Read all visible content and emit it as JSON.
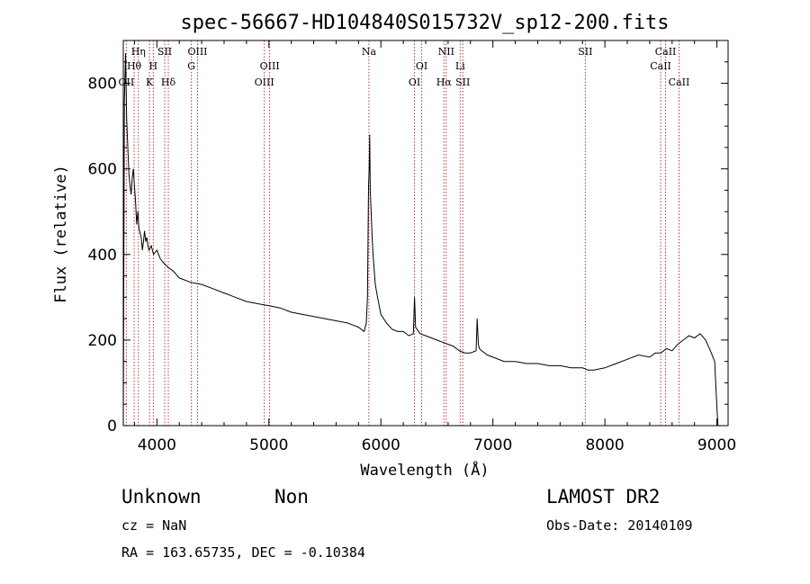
{
  "chart_data": {
    "type": "line",
    "title": "spec-56667-HD104840S015732V_sp12-200.fits",
    "xlabel": "Wavelength (Å)",
    "ylabel": "Flux (relative)",
    "xlim": [
      3700,
      9100
    ],
    "ylim": [
      0,
      900
    ],
    "xticks": [
      4000,
      5000,
      6000,
      7000,
      8000,
      9000
    ],
    "yticks": [
      0,
      200,
      400,
      600,
      800
    ],
    "grid": false,
    "series": [
      {
        "x": [
          3700,
          3710,
          3720,
          3730,
          3740,
          3750,
          3760,
          3770,
          3780,
          3790,
          3800,
          3810,
          3820,
          3830,
          3840,
          3850,
          3860,
          3870,
          3880,
          3890,
          3900,
          3910,
          3920,
          3930,
          3950,
          3970,
          4000,
          4030,
          4060,
          4100,
          4150,
          4200,
          4300,
          4400,
          4500,
          4600,
          4700,
          4800,
          4900,
          5000,
          5100,
          5200,
          5300,
          5400,
          5500,
          5600,
          5700,
          5750,
          5800,
          5850,
          5870,
          5880,
          5890,
          5895,
          5900,
          5905,
          5910,
          5920,
          5930,
          5950,
          5970,
          6000,
          6050,
          6100,
          6150,
          6200,
          6250,
          6290,
          6300,
          6310,
          6350,
          6400,
          6450,
          6500,
          6550,
          6600,
          6650,
          6700,
          6750,
          6800,
          6850,
          6860,
          6870,
          6880,
          6900,
          6950,
          7000,
          7100,
          7200,
          7300,
          7400,
          7500,
          7600,
          7700,
          7800,
          7850,
          7900,
          8000,
          8100,
          8200,
          8300,
          8400,
          8450,
          8500,
          8550,
          8600,
          8650,
          8700,
          8750,
          8800,
          8850,
          8900,
          8950,
          8980,
          9000,
          9010
        ],
        "y": [
          0,
          760,
          870,
          720,
          650,
          590,
          560,
          540,
          580,
          600,
          560,
          520,
          470,
          500,
          460,
          450,
          440,
          410,
          430,
          455,
          430,
          440,
          420,
          410,
          420,
          400,
          410,
          390,
          380,
          370,
          360,
          345,
          335,
          330,
          320,
          310,
          300,
          290,
          285,
          280,
          275,
          265,
          260,
          255,
          250,
          245,
          240,
          235,
          230,
          220,
          240,
          300,
          560,
          600,
          680,
          550,
          520,
          450,
          400,
          330,
          300,
          260,
          240,
          225,
          220,
          220,
          210,
          215,
          300,
          230,
          215,
          210,
          205,
          200,
          195,
          190,
          185,
          175,
          170,
          170,
          175,
          250,
          190,
          180,
          175,
          165,
          160,
          150,
          150,
          145,
          145,
          140,
          140,
          135,
          135,
          130,
          130,
          135,
          145,
          155,
          165,
          160,
          170,
          170,
          180,
          175,
          190,
          200,
          210,
          205,
          215,
          200,
          170,
          150,
          40,
          0
        ]
      }
    ],
    "spectral_lines": [
      {
        "label": "Hη",
        "x": 3835,
        "row": 0
      },
      {
        "label": "Hθ",
        "x": 3797,
        "row": 1
      },
      {
        "label": "OII",
        "x": 3727,
        "row": 2
      },
      {
        "label": "SII",
        "x": 4070,
        "row": 0
      },
      {
        "label": "H",
        "x": 3968,
        "row": 1
      },
      {
        "label": "K",
        "x": 3934,
        "row": 2
      },
      {
        "label": "Hδ",
        "x": 4102,
        "row": 2
      },
      {
        "label": "OIII",
        "x": 4363,
        "row": 0
      },
      {
        "label": "G",
        "x": 4308,
        "row": 1
      },
      {
        "label": "OIII",
        "x": 5007,
        "row": 1
      },
      {
        "label": "OIII",
        "x": 4959,
        "row": 2
      },
      {
        "label": "Na",
        "x": 5893,
        "row": 0
      },
      {
        "label": "OI",
        "x": 6364,
        "row": 1
      },
      {
        "label": "OI",
        "x": 6300,
        "row": 2
      },
      {
        "label": "NII",
        "x": 6583,
        "row": 0
      },
      {
        "label": "Hα",
        "x": 6563,
        "row": 2
      },
      {
        "label": "Li",
        "x": 6708,
        "row": 1
      },
      {
        "label": "SII",
        "x": 6731,
        "row": 2
      },
      {
        "label": "SII",
        "x": 7825,
        "row": 0
      },
      {
        "label": "CaII",
        "x": 8542,
        "row": 0
      },
      {
        "label": "CaII",
        "x": 8498,
        "row": 1
      },
      {
        "label": "CaII",
        "x": 8662,
        "row": 2
      }
    ]
  },
  "footer": {
    "class_text": "Unknown",
    "subclass_text": "Non",
    "survey_text": "LAMOST DR2",
    "cz_text": "cz = NaN",
    "obs_date_text": "Obs-Date: 20140109",
    "radec_text": "RA = 163.65735, DEC =  -0.10384"
  },
  "colors": {
    "spectrum": "#000000",
    "line_markers": "#b22222",
    "background": "#ffffff"
  }
}
